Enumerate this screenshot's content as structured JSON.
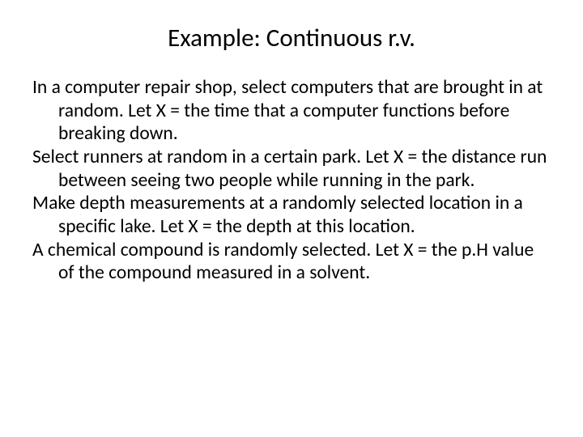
{
  "title": "Example: Continuous r.v.",
  "paragraphs": {
    "p1": "In a computer repair shop, select computers that are brought in at random. Let X = the time that a computer functions before breaking down.",
    "p2": "Select runners at random in a certain park. Let X = the distance run between seeing two people while running in the park.",
    "p3": "Make depth measurements at a randomly selected location in a specific lake. Let X = the depth at this location.",
    "p4": "A chemical compound is randomly selected. Let X = the p.H value of the compound measured in a solvent."
  },
  "colors": {
    "background": "#ffffff",
    "text": "#000000"
  },
  "typography": {
    "title_fontsize": 31,
    "body_fontsize": 23.5,
    "font_family": "Calibri"
  }
}
